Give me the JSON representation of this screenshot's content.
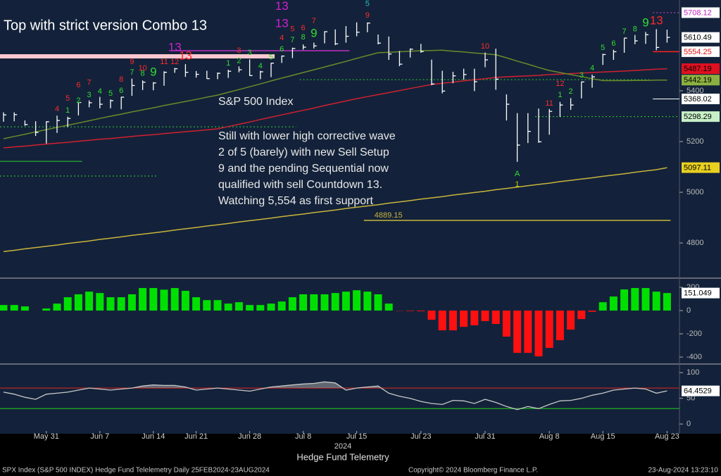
{
  "chart_data": [
    {
      "type": "ohlc",
      "title": "Top with strict version Combo 13",
      "subtitle": "S&P 500 Index",
      "notes": [
        "Still with lower high corrective wave",
        "2 of 5 (barely) with new Sell Setup",
        "9 and the pending Sequential now",
        "qualified with sell Countdown 13.",
        "Watching 5,554 as first support"
      ],
      "xlabel": "Hedge Fund Telemetry",
      "xlabel_year": "2024",
      "categories": [
        null,
        null,
        null,
        null,
        "May 31",
        null,
        null,
        null,
        null,
        "Jun 7",
        null,
        null,
        null,
        null,
        "Jun 14",
        null,
        null,
        null,
        "Jun 21",
        null,
        null,
        null,
        null,
        "Jun 28",
        null,
        null,
        null,
        null,
        "Jul 8",
        null,
        null,
        null,
        null,
        "Jul 15",
        null,
        null,
        null,
        null,
        null,
        "Jul 23",
        null,
        null,
        null,
        null,
        null,
        "Jul 31",
        null,
        null,
        null,
        null,
        null,
        "Aug 8",
        null,
        null,
        null,
        null,
        "Aug 15",
        null,
        null,
        null,
        null,
        null,
        "Aug 23"
      ],
      "high": [
        5315,
        5315,
        5283,
        5280,
        5280,
        5302,
        5298,
        5355,
        5362,
        5376,
        5366,
        5376,
        5448,
        5441,
        5434,
        5477,
        5490,
        5505,
        5478,
        5479,
        5472,
        5483,
        5496,
        5524,
        5479,
        5510,
        5539,
        5570,
        5583,
        5590,
        5635,
        5642,
        5655,
        5670,
        5669,
        5622,
        5614,
        5557,
        5567,
        5585,
        5523,
        5479,
        5475,
        5487,
        5487,
        5551,
        5566,
        5386,
        5312,
        5312,
        5330,
        5328,
        5356,
        5371,
        5436,
        5464,
        5546,
        5562,
        5608,
        5620,
        5632,
        5643,
        5641
      ],
      "low": [
        5278,
        5280,
        5262,
        5222,
        5192,
        5234,
        5257,
        5303,
        5335,
        5331,
        5331,
        5327,
        5380,
        5403,
        5402,
        5420,
        5471,
        5455,
        5452,
        5447,
        5446,
        5451,
        5473,
        5459,
        5446,
        5454,
        5510,
        5529,
        5562,
        5567,
        5587,
        5580,
        5590,
        5615,
        5631,
        5583,
        5522,
        5497,
        5531,
        5550,
        5422,
        5390,
        5430,
        5444,
        5399,
        5493,
        5404,
        5283,
        5120,
        5194,
        5195,
        5227,
        5297,
        5325,
        5370,
        5412,
        5502,
        5522,
        5550,
        5584,
        5585,
        5560,
        5590
      ],
      "close": [
        5305,
        5306,
        5267,
        5236,
        5278,
        5283,
        5291,
        5354,
        5353,
        5347,
        5361,
        5375,
        5421,
        5434,
        5431,
        5473,
        5487,
        5473,
        5465,
        5448,
        5469,
        5477,
        5483,
        5460,
        5475,
        5509,
        5537,
        5567,
        5572,
        5577,
        5633,
        5585,
        5615,
        5631,
        5667,
        5588,
        5545,
        5505,
        5564,
        5555,
        5427,
        5399,
        5459,
        5464,
        5436,
        5522,
        5446,
        5347,
        5186,
        5240,
        5199,
        5319,
        5344,
        5344,
        5435,
        5455,
        5543,
        5554,
        5608,
        5597,
        5621,
        5571,
        5610.49
      ],
      "ohlc_color": "#ffffff",
      "close_tag_fill": "#ffffff",
      "series": [
        {
          "color": "#c8b43c",
          "tag_fill": "#e8d020",
          "values": [
            4766,
            4771,
            4777,
            4782,
            4787,
            4792,
            4798,
            4803,
            4808,
            4814,
            4819,
            4824,
            4830,
            4835,
            4840,
            4845,
            4851,
            4856,
            4861,
            4867,
            4872,
            4877,
            4883,
            4888,
            4893,
            4898,
            4904,
            4909,
            4914,
            4920,
            4925,
            4930,
            4936,
            4941,
            4946,
            4951,
            4957,
            4962,
            4967,
            4973,
            4978,
            4983,
            4989,
            4994,
            4999,
            5004,
            5010,
            5015,
            5020,
            5026,
            5031,
            5036,
            5042,
            5047,
            5052,
            5057,
            5063,
            5068,
            5073,
            5079,
            5084,
            5089,
            5097.11
          ]
        },
        {
          "color": "#d02030",
          "tag_fill": "#e01020",
          "values": [
            5175,
            5179,
            5182,
            5186,
            5190,
            5194,
            5197,
            5201,
            5205,
            5209,
            5212,
            5216,
            5220,
            5224,
            5227,
            5231,
            5235,
            5239,
            5242,
            5246,
            5250,
            5259,
            5268,
            5277,
            5287,
            5296,
            5305,
            5314,
            5323,
            5332,
            5342,
            5351,
            5360,
            5369,
            5377,
            5385,
            5393,
            5401,
            5409,
            5417,
            5425,
            5430,
            5434,
            5439,
            5444,
            5448,
            5453,
            5455,
            5457,
            5459,
            5461,
            5464,
            5466,
            5468,
            5470,
            5472,
            5474,
            5476,
            5478,
            5480,
            5483,
            5485,
            5487.19
          ]
        },
        {
          "color": "#6a8a2a",
          "tag_fill": "#8cb040",
          "values": [
            5211,
            5220,
            5229,
            5238,
            5247,
            5256,
            5264,
            5273,
            5282,
            5291,
            5300,
            5308,
            5317,
            5325,
            5333,
            5342,
            5350,
            5358,
            5366,
            5375,
            5383,
            5394,
            5405,
            5416,
            5427,
            5439,
            5450,
            5461,
            5472,
            5483,
            5494,
            5505,
            5516,
            5528,
            5539,
            5550,
            5552,
            5554,
            5556,
            5558,
            5559,
            5560,
            5556,
            5553,
            5549,
            5546,
            5542,
            5530,
            5517,
            5505,
            5492,
            5480,
            5472,
            5464,
            5456,
            5448,
            5440,
            5440,
            5440,
            5441,
            5441,
            5442,
            5442.19
          ]
        }
      ],
      "levels": [
        {
          "value": 5536,
          "from": 0,
          "to": 25,
          "color": "#ffc8d0",
          "width": 6
        },
        {
          "value": 5558,
          "from": 16,
          "to": 32,
          "color": "#c030c0",
          "width": 1.5
        },
        {
          "value": 4889.15,
          "from": 34,
          "to": 62,
          "color": "#c8b43c",
          "width": 1.5,
          "tag": "start"
        },
        {
          "value": 5708.12,
          "from": 61,
          "to": 62,
          "color": "#e040e0",
          "width": 1,
          "dash": true,
          "tag": "axis",
          "tag_fill": "#ffffff",
          "tag_text": "#c020c0"
        },
        {
          "value": 5554.25,
          "from": 61,
          "to": 62,
          "color": "#ff2020",
          "width": 1.5,
          "tag": "axis",
          "tag_fill": "#ffffff",
          "tag_text": "#e01010"
        },
        {
          "value": 5368.02,
          "from": 61,
          "to": 62,
          "color": "#ffffff",
          "width": 1,
          "tag": "axis",
          "tag_fill": "#ffffff",
          "tag_text": "#000000"
        },
        {
          "value": 5298.29,
          "from": 50,
          "to": 62,
          "color": "#30d030",
          "width": 1,
          "dash": true,
          "tag": "axis",
          "tag_fill": "#c8f0c8",
          "tag_text": "#000000"
        },
        {
          "value": 5258,
          "from": 0,
          "to": 27,
          "color": "#30d030",
          "width": 1,
          "dash": true
        },
        {
          "value": 5444,
          "from": 28,
          "to": 60,
          "color": "#30d030",
          "width": 1,
          "dash": true
        },
        {
          "value": 5122,
          "from": 0,
          "to": 7,
          "color": "#30d030",
          "width": 1
        },
        {
          "value": 5064,
          "from": 0,
          "to": 14,
          "color": "#30d030",
          "width": 1,
          "dash": true
        }
      ],
      "markers": [
        {
          "x": 5,
          "y": 5328,
          "text": "4",
          "color": "#ff2a2a"
        },
        {
          "x": 6,
          "y": 5369,
          "text": "5",
          "color": "#ff2a2a"
        },
        {
          "x": 7,
          "y": 5422,
          "text": "6",
          "color": "#ff2a2a"
        },
        {
          "x": 8,
          "y": 5431,
          "text": "7",
          "color": "#ff2a2a"
        },
        {
          "x": 11,
          "y": 5444,
          "text": "8",
          "color": "#ff2a2a"
        },
        {
          "x": 12,
          "y": 5514,
          "text": "9",
          "color": "#ff2a2a"
        },
        {
          "x": 13,
          "y": 5489,
          "text": "10",
          "color": "#ff2a2a"
        },
        {
          "x": 15,
          "y": 5514,
          "text": "11",
          "color": "#ff2a2a"
        },
        {
          "x": 16,
          "y": 5514,
          "text": "12",
          "color": "#ff2a2a"
        },
        {
          "x": 17,
          "y": 5536,
          "text": "13",
          "color": "#ff2a2a",
          "big": true
        },
        {
          "x": 16,
          "y": 5569,
          "text": "13",
          "color": "#d020d0",
          "big": true
        },
        {
          "x": 6,
          "y": 5322,
          "text": "1",
          "color": "#33dd33"
        },
        {
          "x": 7,
          "y": 5361,
          "text": "2",
          "color": "#33dd33"
        },
        {
          "x": 8,
          "y": 5383,
          "text": "3",
          "color": "#33dd33"
        },
        {
          "x": 9,
          "y": 5397,
          "text": "4",
          "color": "#33dd33"
        },
        {
          "x": 10,
          "y": 5389,
          "text": "5",
          "color": "#33dd33"
        },
        {
          "x": 11,
          "y": 5400,
          "text": "6",
          "color": "#33dd33"
        },
        {
          "x": 12,
          "y": 5472,
          "text": "7",
          "color": "#33dd33"
        },
        {
          "x": 13,
          "y": 5467,
          "text": "8",
          "color": "#33dd33"
        },
        {
          "x": 14,
          "y": 5472,
          "text": "9",
          "color": "#33dd33",
          "big": true
        },
        {
          "x": 21,
          "y": 5508,
          "text": "1",
          "color": "#33dd33"
        },
        {
          "x": 22,
          "y": 5517,
          "text": "2",
          "color": "#33dd33"
        },
        {
          "x": 23,
          "y": 5550,
          "text": "3",
          "color": "#33dd33"
        },
        {
          "x": 24,
          "y": 5497,
          "text": "4",
          "color": "#33dd33"
        },
        {
          "x": 25,
          "y": 5531,
          "text": "5",
          "color": "#33dd33"
        },
        {
          "x": 26,
          "y": 5564,
          "text": "6",
          "color": "#33dd33"
        },
        {
          "x": 27,
          "y": 5600,
          "text": "7",
          "color": "#33dd33"
        },
        {
          "x": 28,
          "y": 5611,
          "text": "8",
          "color": "#33dd33"
        },
        {
          "x": 29,
          "y": 5625,
          "text": "9",
          "color": "#33dd33",
          "big": true
        },
        {
          "x": 22,
          "y": 5558,
          "text": "3",
          "color": "#ff2a2a"
        },
        {
          "x": 26,
          "y": 5608,
          "text": "4",
          "color": "#ff2a2a"
        },
        {
          "x": 27,
          "y": 5642,
          "text": "5",
          "color": "#ff2a2a"
        },
        {
          "x": 28,
          "y": 5647,
          "text": "6",
          "color": "#ff2a2a"
        },
        {
          "x": 29,
          "y": 5675,
          "text": "7",
          "color": "#ff2a2a"
        },
        {
          "x": 34,
          "y": 5697,
          "text": "9",
          "color": "#ff2a2a"
        },
        {
          "x": 34,
          "y": 5742,
          "text": "5",
          "color": "#20c0c0"
        },
        {
          "x": 26,
          "y": 5731,
          "text": "13",
          "color": "#d020d0",
          "big": true
        },
        {
          "x": 26,
          "y": 5664,
          "text": "13",
          "color": "#d020d0",
          "big": true
        },
        {
          "x": 45,
          "y": 5575,
          "text": "10",
          "color": "#ff2a2a"
        },
        {
          "x": 51,
          "y": 5350,
          "text": "11",
          "color": "#ff2a2a"
        },
        {
          "x": 52,
          "y": 5428,
          "text": "12",
          "color": "#ff2a2a"
        },
        {
          "x": 52,
          "y": 5383,
          "text": "1",
          "color": "#33dd33"
        },
        {
          "x": 53,
          "y": 5397,
          "text": "2",
          "color": "#33dd33"
        },
        {
          "x": 54,
          "y": 5461,
          "text": "3",
          "color": "#33dd33"
        },
        {
          "x": 55,
          "y": 5489,
          "text": "4",
          "color": "#33dd33"
        },
        {
          "x": 56,
          "y": 5569,
          "text": "5",
          "color": "#33dd33"
        },
        {
          "x": 57,
          "y": 5586,
          "text": "6",
          "color": "#33dd33"
        },
        {
          "x": 58,
          "y": 5633,
          "text": "7",
          "color": "#33dd33"
        },
        {
          "x": 59,
          "y": 5642,
          "text": "8",
          "color": "#33dd33"
        },
        {
          "x": 60,
          "y": 5667,
          "text": "9",
          "color": "#33dd33",
          "big": true
        },
        {
          "x": 61,
          "y": 5675,
          "text": "13",
          "color": "#ff2a2a",
          "big": true
        },
        {
          "x": 48,
          "y": 5072,
          "text": "A",
          "color": "#33dd33"
        },
        {
          "x": 48,
          "y": 5031,
          "text": "1",
          "color": "#c8c800"
        }
      ],
      "ylim": [
        4667,
        5758
      ],
      "yticks": [
        4800,
        5000,
        5200,
        5400
      ]
    },
    {
      "type": "bar",
      "colors": {
        "positive": "#00e000",
        "negative": "#ff1010"
      },
      "tag_fill": "#ffffff",
      "values": [
        48,
        48,
        36,
        0,
        18,
        60,
        115,
        140,
        163,
        151,
        115,
        115,
        140,
        194,
        194,
        180,
        194,
        170,
        115,
        90,
        90,
        60,
        72,
        48,
        48,
        60,
        78,
        115,
        140,
        140,
        140,
        151,
        163,
        175,
        163,
        140,
        60,
        -2,
        -4,
        -6,
        -79,
        -170,
        -170,
        -140,
        -127,
        -91,
        -115,
        -224,
        -364,
        -364,
        -394,
        -321,
        -255,
        -164,
        -73,
        -10,
        72,
        121,
        182,
        194,
        194,
        163,
        151.049
      ],
      "ylim": [
        -448,
        267
      ],
      "yticks": [
        -400,
        -200,
        0,
        200
      ]
    },
    {
      "type": "line",
      "color": "#c8c8c8",
      "tag_fill": "#ffffff",
      "shade": true,
      "values": [
        62,
        58,
        52,
        48,
        58,
        60,
        62,
        66,
        70,
        68,
        66,
        68,
        70,
        74,
        76,
        75,
        75,
        72,
        66,
        68,
        70,
        68,
        66,
        64,
        68,
        72,
        74,
        76,
        78,
        79,
        82,
        80,
        66,
        70,
        72,
        74,
        60,
        54,
        50,
        44,
        40,
        38,
        46,
        45,
        40,
        48,
        42,
        34,
        28,
        34,
        30,
        38,
        45,
        46,
        50,
        56,
        60,
        66,
        68,
        70,
        68,
        60,
        64.4529
      ],
      "levels": [
        {
          "value": 70,
          "color": "#c02020"
        },
        {
          "value": 30,
          "color": "#20b020"
        }
      ],
      "ylim": [
        -19,
        114
      ],
      "yticks": [
        0,
        50,
        100
      ]
    }
  ],
  "footer": {
    "left": "SPX Index (S&P 500 INDEX) Hedge Fund Telelemetry  Daily 25FEB2024-23AUG2024",
    "center": "Copyright© 2024 Bloomberg Finance L.P.",
    "right": "23-Aug-2024 13:23:10"
  }
}
